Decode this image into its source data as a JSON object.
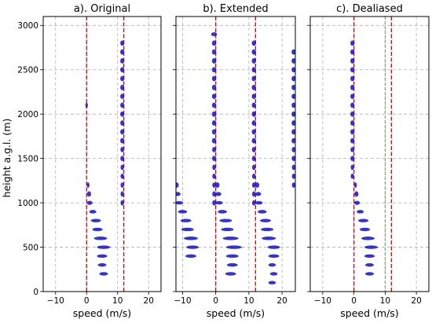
{
  "chart_data": {
    "type": "scatter",
    "ylabel": "height a.g.l. (m)",
    "ylim": [
      0,
      3100
    ],
    "yticks": [
      0,
      500,
      1000,
      1500,
      2000,
      2500,
      3000
    ],
    "grid": true,
    "colors": {
      "spectra": "#1010cc",
      "nyquist": "#e00000",
      "fold": "#66aa66",
      "grid": "#b0b0b0"
    },
    "panels": [
      {
        "title": "a). Original",
        "xlabel": "speed (m/s)",
        "xlim": [
          -14,
          24
        ],
        "xticks": [
          -10,
          0,
          10,
          20
        ],
        "red_lines": [
          0,
          12
        ],
        "green_lines": [],
        "spectra": [
          {
            "x": 5.5,
            "y": 200,
            "w": 2.5
          },
          {
            "x": 5.0,
            "y": 300,
            "w": 2.5
          },
          {
            "x": 5.0,
            "y": 400,
            "w": 3.0
          },
          {
            "x": 5.5,
            "y": 500,
            "w": 4.0
          },
          {
            "x": 4.5,
            "y": 600,
            "w": 4.0
          },
          {
            "x": 3.5,
            "y": 700,
            "w": 3.0
          },
          {
            "x": 3.0,
            "y": 800,
            "w": 3.0
          },
          {
            "x": 2.0,
            "y": 900,
            "w": 2.0
          },
          {
            "x": 1.0,
            "y": 1000,
            "w": 1.5
          },
          {
            "x": 0.8,
            "y": 1100,
            "w": 1.0
          },
          {
            "x": 0.5,
            "y": 1200,
            "w": 0.6
          },
          {
            "x": 0.0,
            "y": 2100,
            "w": 0.4
          },
          {
            "x": 11.5,
            "y": 1000,
            "w": 0.8
          },
          {
            "x": 11.5,
            "y": 1100,
            "w": 0.8
          },
          {
            "x": 11.5,
            "y": 1200,
            "w": 0.8
          },
          {
            "x": 11.5,
            "y": 1300,
            "w": 0.8
          },
          {
            "x": 11.5,
            "y": 1400,
            "w": 0.8
          },
          {
            "x": 11.5,
            "y": 1500,
            "w": 0.9
          },
          {
            "x": 11.5,
            "y": 1600,
            "w": 0.9
          },
          {
            "x": 11.5,
            "y": 1700,
            "w": 1.0
          },
          {
            "x": 11.5,
            "y": 1800,
            "w": 1.0
          },
          {
            "x": 11.5,
            "y": 1900,
            "w": 1.0
          },
          {
            "x": 11.5,
            "y": 2000,
            "w": 1.0
          },
          {
            "x": 11.5,
            "y": 2100,
            "w": 1.0
          },
          {
            "x": 11.5,
            "y": 2200,
            "w": 1.0
          },
          {
            "x": 11.5,
            "y": 2300,
            "w": 1.0
          },
          {
            "x": 11.5,
            "y": 2400,
            "w": 1.0
          },
          {
            "x": 11.5,
            "y": 2500,
            "w": 1.0
          },
          {
            "x": 11.5,
            "y": 2600,
            "w": 1.0
          },
          {
            "x": 11.5,
            "y": 2700,
            "w": 1.0
          },
          {
            "x": 11.5,
            "y": 2800,
            "w": 1.0
          }
        ]
      },
      {
        "title": "b). Extended",
        "xlabel": "speed (m/s)",
        "xlim": [
          -12,
          24
        ],
        "xticks": [
          -10,
          0,
          10,
          20
        ],
        "red_lines": [
          0,
          12
        ],
        "green_lines": [],
        "spectra": [
          {
            "x": 4.5,
            "y": 200,
            "w": 3.0
          },
          {
            "x": 5.0,
            "y": 300,
            "w": 3.0
          },
          {
            "x": 5.0,
            "y": 400,
            "w": 3.5
          },
          {
            "x": 5.5,
            "y": 500,
            "w": 4.5
          },
          {
            "x": 4.5,
            "y": 600,
            "w": 4.5
          },
          {
            "x": 3.5,
            "y": 700,
            "w": 3.5
          },
          {
            "x": 3.0,
            "y": 800,
            "w": 3.5
          },
          {
            "x": 2.0,
            "y": 900,
            "w": 2.5
          },
          {
            "x": 1.0,
            "y": 1000,
            "w": 2.0
          },
          {
            "x": 0.8,
            "y": 1100,
            "w": 1.5
          },
          {
            "x": 0.5,
            "y": 1200,
            "w": 1.0
          },
          {
            "x": 17.0,
            "y": 100,
            "w": 2.0
          },
          {
            "x": 17.5,
            "y": 200,
            "w": 2.0
          },
          {
            "x": 17.0,
            "y": 300,
            "w": 2.0
          },
          {
            "x": 17.5,
            "y": 400,
            "w": 3.0
          },
          {
            "x": 17.5,
            "y": 500,
            "w": 3.5
          },
          {
            "x": 16.0,
            "y": 600,
            "w": 4.0
          },
          {
            "x": 15.5,
            "y": 700,
            "w": 3.5
          },
          {
            "x": 15.0,
            "y": 800,
            "w": 3.0
          },
          {
            "x": 14.0,
            "y": 900,
            "w": 2.5
          },
          {
            "x": 13.0,
            "y": 1000,
            "w": 2.0
          },
          {
            "x": 12.8,
            "y": 1100,
            "w": 1.5
          },
          {
            "x": 12.5,
            "y": 1200,
            "w": 1.0
          },
          {
            "x": -7.5,
            "y": 400,
            "w": 3.0
          },
          {
            "x": -7.0,
            "y": 500,
            "w": 3.5
          },
          {
            "x": -7.5,
            "y": 600,
            "w": 4.0
          },
          {
            "x": -8.5,
            "y": 700,
            "w": 3.5
          },
          {
            "x": -9.0,
            "y": 800,
            "w": 3.0
          },
          {
            "x": -10.0,
            "y": 900,
            "w": 2.5
          },
          {
            "x": -11.0,
            "y": 1000,
            "w": 2.0
          },
          {
            "x": -11.5,
            "y": 1100,
            "w": 1.5
          },
          {
            "x": -11.8,
            "y": 1200,
            "w": 1.0
          },
          {
            "x": -0.5,
            "y": 1000,
            "w": 0.8
          },
          {
            "x": -0.5,
            "y": 1100,
            "w": 0.8
          },
          {
            "x": -0.5,
            "y": 1200,
            "w": 0.8
          },
          {
            "x": -0.5,
            "y": 1300,
            "w": 0.8
          },
          {
            "x": -0.5,
            "y": 1400,
            "w": 0.8
          },
          {
            "x": -0.5,
            "y": 1500,
            "w": 0.9
          },
          {
            "x": -0.5,
            "y": 1600,
            "w": 0.9
          },
          {
            "x": -0.5,
            "y": 1700,
            "w": 1.0
          },
          {
            "x": -0.5,
            "y": 1800,
            "w": 1.0
          },
          {
            "x": -0.5,
            "y": 1900,
            "w": 1.0
          },
          {
            "x": -0.5,
            "y": 2000,
            "w": 1.0
          },
          {
            "x": -0.5,
            "y": 2100,
            "w": 1.0
          },
          {
            "x": -0.5,
            "y": 2200,
            "w": 1.0
          },
          {
            "x": -0.5,
            "y": 2300,
            "w": 1.0
          },
          {
            "x": -0.5,
            "y": 2400,
            "w": 1.0
          },
          {
            "x": -0.5,
            "y": 2500,
            "w": 1.0
          },
          {
            "x": -0.5,
            "y": 2600,
            "w": 1.0
          },
          {
            "x": -0.5,
            "y": 2700,
            "w": 1.0
          },
          {
            "x": -0.5,
            "y": 2800,
            "w": 1.0
          },
          {
            "x": -0.5,
            "y": 2900,
            "w": 1.5
          },
          {
            "x": 11.5,
            "y": 1000,
            "w": 0.8
          },
          {
            "x": 11.5,
            "y": 1100,
            "w": 0.8
          },
          {
            "x": 11.5,
            "y": 1200,
            "w": 0.8
          },
          {
            "x": 11.5,
            "y": 1300,
            "w": 0.8
          },
          {
            "x": 11.5,
            "y": 1400,
            "w": 0.8
          },
          {
            "x": 11.5,
            "y": 1500,
            "w": 0.9
          },
          {
            "x": 11.5,
            "y": 1600,
            "w": 0.9
          },
          {
            "x": 11.5,
            "y": 1700,
            "w": 1.0
          },
          {
            "x": 11.5,
            "y": 1800,
            "w": 1.0
          },
          {
            "x": 11.5,
            "y": 1900,
            "w": 1.0
          },
          {
            "x": 11.5,
            "y": 2000,
            "w": 1.0
          },
          {
            "x": 11.5,
            "y": 2100,
            "w": 1.0
          },
          {
            "x": 11.5,
            "y": 2200,
            "w": 1.0
          },
          {
            "x": 11.5,
            "y": 2300,
            "w": 1.0
          },
          {
            "x": 11.5,
            "y": 2400,
            "w": 1.0
          },
          {
            "x": 11.5,
            "y": 2500,
            "w": 1.0
          },
          {
            "x": 11.5,
            "y": 2600,
            "w": 1.0
          },
          {
            "x": 11.5,
            "y": 2700,
            "w": 1.0
          },
          {
            "x": 11.5,
            "y": 2800,
            "w": 1.0
          },
          {
            "x": 23.5,
            "y": 1200,
            "w": 0.8
          },
          {
            "x": 23.5,
            "y": 1300,
            "w": 0.8
          },
          {
            "x": 23.5,
            "y": 1400,
            "w": 0.8
          },
          {
            "x": 23.5,
            "y": 1500,
            "w": 0.9
          },
          {
            "x": 23.5,
            "y": 1600,
            "w": 0.9
          },
          {
            "x": 23.5,
            "y": 1700,
            "w": 1.0
          },
          {
            "x": 23.5,
            "y": 1800,
            "w": 1.0
          },
          {
            "x": 23.5,
            "y": 1900,
            "w": 1.0
          },
          {
            "x": 23.5,
            "y": 2000,
            "w": 1.0
          },
          {
            "x": 23.5,
            "y": 2100,
            "w": 1.0
          },
          {
            "x": 23.5,
            "y": 2200,
            "w": 1.0
          },
          {
            "x": 23.5,
            "y": 2300,
            "w": 1.0
          },
          {
            "x": 23.5,
            "y": 2400,
            "w": 1.0
          },
          {
            "x": 23.5,
            "y": 2500,
            "w": 1.0
          },
          {
            "x": 23.5,
            "y": 2600,
            "w": 1.0
          },
          {
            "x": 23.5,
            "y": 2700,
            "w": 1.0
          }
        ]
      },
      {
        "title": "c). Dealiased",
        "xlabel": "speed (m/s)",
        "xlim": [
          -14,
          24
        ],
        "xticks": [
          -10,
          0,
          10,
          20
        ],
        "red_lines": [
          0,
          12
        ],
        "green_lines": [
          10
        ],
        "spectra": [
          {
            "x": 5.0,
            "y": 200,
            "w": 2.5
          },
          {
            "x": 5.0,
            "y": 300,
            "w": 2.5
          },
          {
            "x": 5.0,
            "y": 400,
            "w": 3.0
          },
          {
            "x": 5.5,
            "y": 500,
            "w": 4.0
          },
          {
            "x": 4.5,
            "y": 600,
            "w": 4.0
          },
          {
            "x": 3.5,
            "y": 700,
            "w": 3.0
          },
          {
            "x": 3.0,
            "y": 800,
            "w": 3.0
          },
          {
            "x": 2.0,
            "y": 900,
            "w": 2.0
          },
          {
            "x": 1.0,
            "y": 1000,
            "w": 1.5
          },
          {
            "x": 0.8,
            "y": 1100,
            "w": 1.0
          },
          {
            "x": 0.5,
            "y": 1200,
            "w": 0.6
          },
          {
            "x": -0.5,
            "y": 1300,
            "w": 0.8
          },
          {
            "x": -0.5,
            "y": 1400,
            "w": 0.8
          },
          {
            "x": -0.5,
            "y": 1500,
            "w": 0.9
          },
          {
            "x": -0.5,
            "y": 1600,
            "w": 0.9
          },
          {
            "x": -0.5,
            "y": 1700,
            "w": 1.0
          },
          {
            "x": -0.5,
            "y": 1800,
            "w": 1.0
          },
          {
            "x": -0.5,
            "y": 1900,
            "w": 1.0
          },
          {
            "x": -0.5,
            "y": 2000,
            "w": 1.0
          },
          {
            "x": -0.5,
            "y": 2100,
            "w": 1.0
          },
          {
            "x": -0.5,
            "y": 2200,
            "w": 1.0
          },
          {
            "x": -0.5,
            "y": 2300,
            "w": 1.0
          },
          {
            "x": -0.5,
            "y": 2400,
            "w": 1.0
          },
          {
            "x": -0.5,
            "y": 2500,
            "w": 1.0
          },
          {
            "x": -0.5,
            "y": 2600,
            "w": 1.0
          },
          {
            "x": -0.5,
            "y": 2700,
            "w": 1.0
          },
          {
            "x": -0.5,
            "y": 2800,
            "w": 1.0
          }
        ]
      }
    ]
  }
}
